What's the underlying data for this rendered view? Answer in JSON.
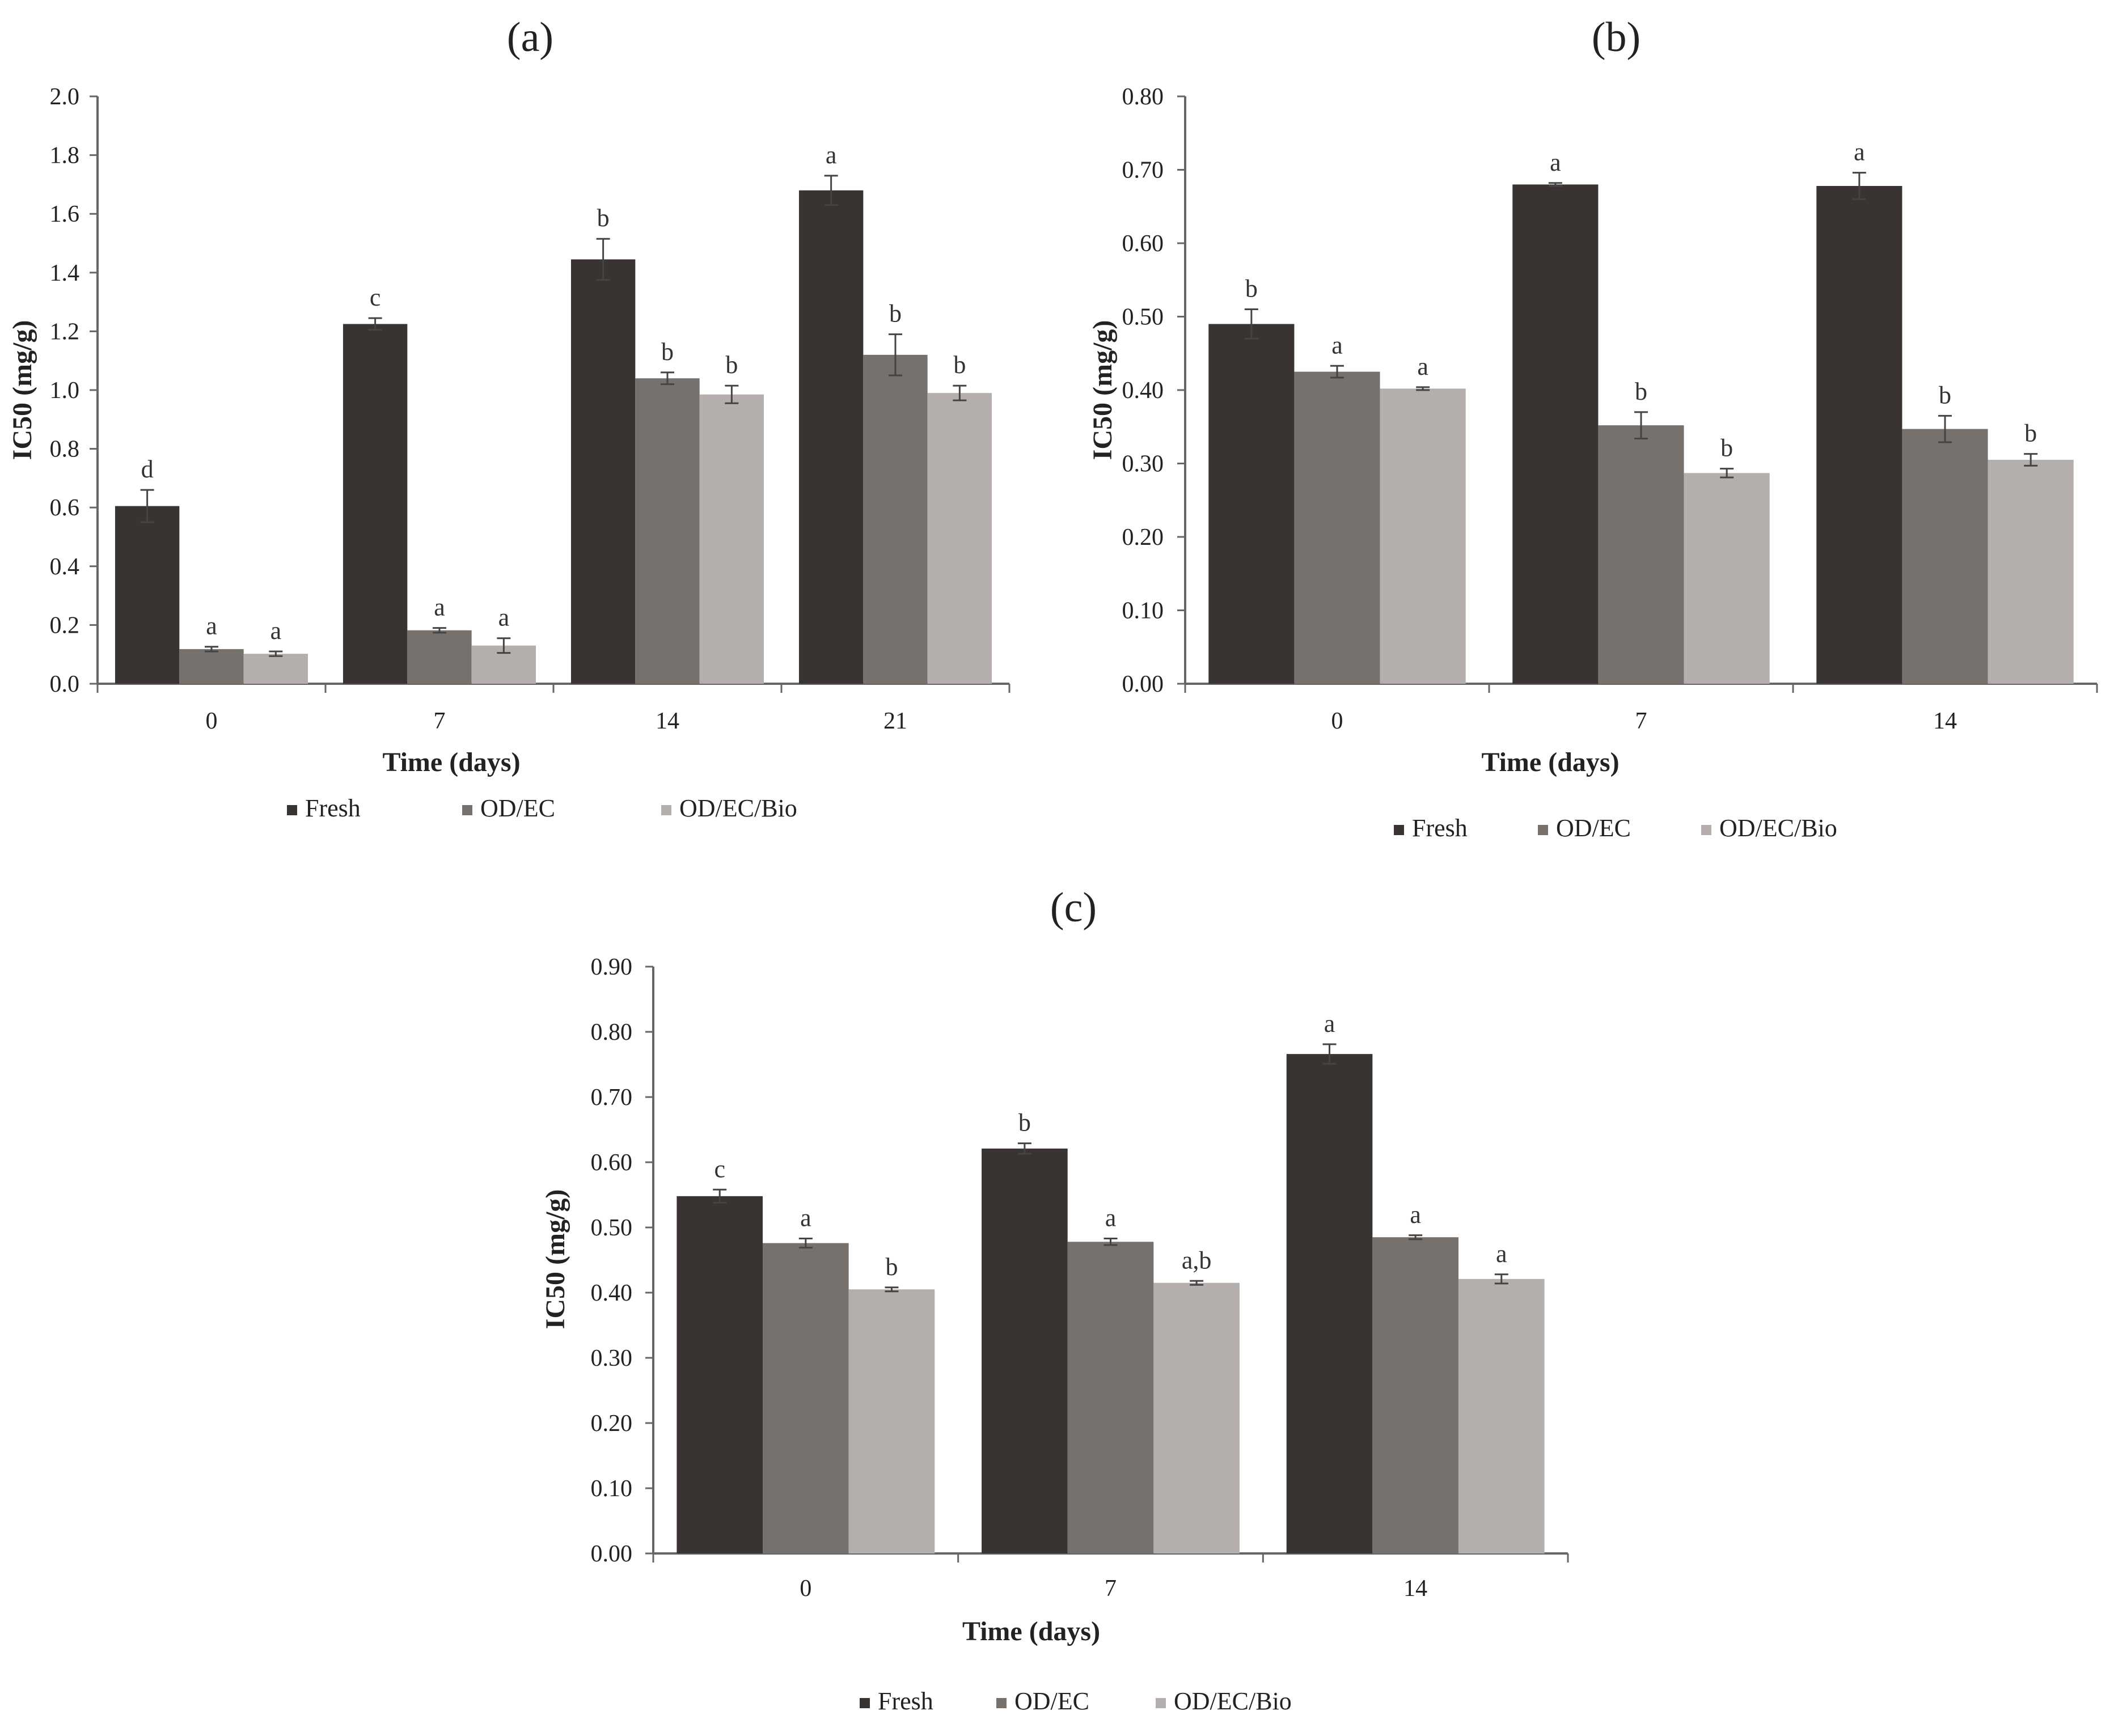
{
  "colors": {
    "fresh": "#393431",
    "odec": "#77716e",
    "odecbio": "#b4afac",
    "axis": "#666666",
    "error": "#444444"
  },
  "legend": [
    "Fresh",
    "OD/EC",
    "OD/EC/Bio"
  ],
  "chart_data": [
    {
      "panel": "(a)",
      "type": "bar",
      "xlabel": "Time (days)",
      "ylabel": "IC50 (mg/g)",
      "categories": [
        "0",
        "7",
        "14",
        "21"
      ],
      "ylim": [
        0,
        2.0
      ],
      "yticks": [
        "0.0",
        "0.2",
        "0.4",
        "0.6",
        "0.8",
        "1.0",
        "1.2",
        "1.4",
        "1.6",
        "1.8",
        "2.0"
      ],
      "series": [
        {
          "name": "Fresh",
          "values": [
            0.605,
            1.225,
            1.445,
            1.68
          ],
          "errors": [
            0.055,
            0.02,
            0.07,
            0.05
          ],
          "letters": [
            "d",
            "c",
            "b",
            "a"
          ]
        },
        {
          "name": "OD/EC",
          "values": [
            0.118,
            0.182,
            1.04,
            1.12
          ],
          "errors": [
            0.008,
            0.008,
            0.02,
            0.07
          ],
          "letters": [
            "a",
            "a",
            "b",
            "b"
          ]
        },
        {
          "name": "OD/EC/Bio",
          "values": [
            0.102,
            0.13,
            0.985,
            0.99
          ],
          "errors": [
            0.008,
            0.025,
            0.03,
            0.025
          ],
          "letters": [
            "a",
            "a",
            "b",
            "b"
          ]
        }
      ]
    },
    {
      "panel": "(b)",
      "type": "bar",
      "xlabel": "Time (days)",
      "ylabel": "IC50 (mg/g)",
      "categories": [
        "0",
        "7",
        "14"
      ],
      "ylim": [
        0,
        0.8
      ],
      "yticks": [
        "0.00",
        "0.10",
        "0.20",
        "0.30",
        "0.40",
        "0.50",
        "0.60",
        "0.70",
        "0.80"
      ],
      "series": [
        {
          "name": "Fresh",
          "values": [
            0.49,
            0.68,
            0.678
          ],
          "errors": [
            0.02,
            0.002,
            0.018
          ],
          "letters": [
            "b",
            "a",
            "a"
          ]
        },
        {
          "name": "OD/EC",
          "values": [
            0.425,
            0.352,
            0.347
          ],
          "errors": [
            0.008,
            0.018,
            0.018
          ],
          "letters": [
            "a",
            "b",
            "b"
          ]
        },
        {
          "name": "OD/EC/Bio",
          "values": [
            0.402,
            0.287,
            0.305
          ],
          "errors": [
            0.002,
            0.006,
            0.008
          ],
          "letters": [
            "a",
            "b",
            "b"
          ]
        }
      ]
    },
    {
      "panel": "(c)",
      "type": "bar",
      "xlabel": "Time (days)",
      "ylabel": "IC50 (mg/g)",
      "categories": [
        "0",
        "7",
        "14"
      ],
      "ylim": [
        0,
        0.9
      ],
      "yticks": [
        "0.00",
        "0.10",
        "0.20",
        "0.30",
        "0.40",
        "0.50",
        "0.60",
        "0.70",
        "0.80",
        "0.90"
      ],
      "series": [
        {
          "name": "Fresh",
          "values": [
            0.548,
            0.621,
            0.766
          ],
          "errors": [
            0.01,
            0.008,
            0.015
          ],
          "letters": [
            "c",
            "b",
            "a"
          ]
        },
        {
          "name": "OD/EC",
          "values": [
            0.476,
            0.478,
            0.485
          ],
          "errors": [
            0.007,
            0.005,
            0.003
          ],
          "letters": [
            "a",
            "a",
            "a"
          ]
        },
        {
          "name": "OD/EC/Bio",
          "values": [
            0.405,
            0.415,
            0.421
          ],
          "errors": [
            0.003,
            0.003,
            0.007
          ],
          "letters": [
            "b",
            "a,b",
            "a"
          ]
        }
      ]
    }
  ]
}
